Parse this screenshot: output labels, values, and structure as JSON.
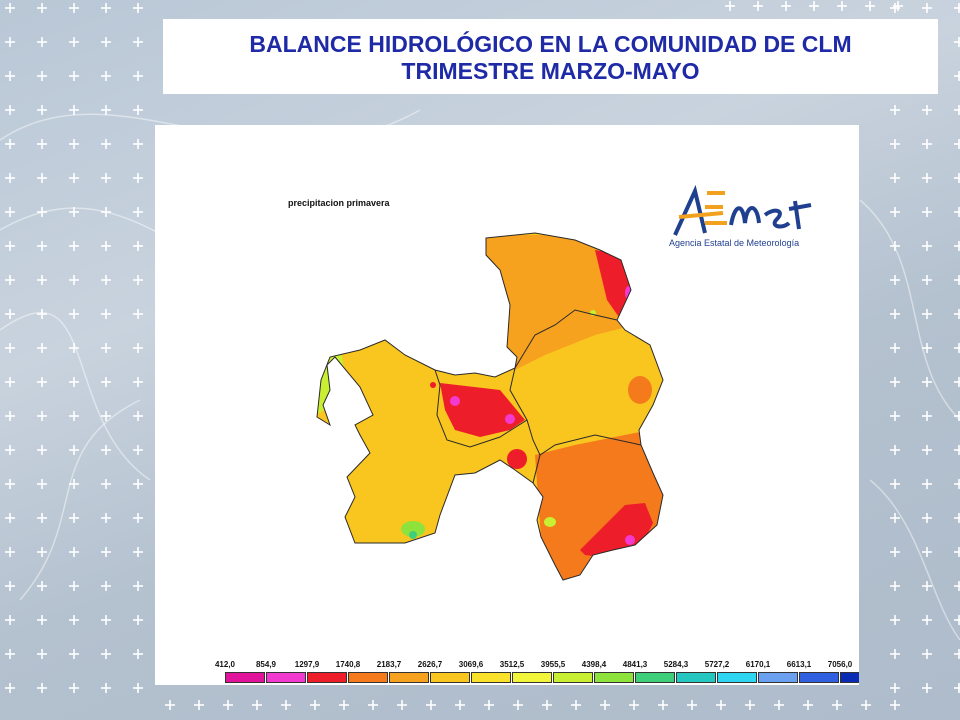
{
  "slide": {
    "title_line1": "BALANCE HIDROLÓGICO EN LA COMUNIDAD DE CLM",
    "title_line2": "TRIMESTRE MARZO-MAYO",
    "title_color": "#1f2aa6"
  },
  "map": {
    "caption": "precipitacion primavera"
  },
  "logo": {
    "wordmark": "AEMet",
    "subtitle": "Agencia Estatal de Meteorología"
  },
  "legend": {
    "labels": [
      "412,0",
      "854,9",
      "1297,9",
      "1740,8",
      "2183,7",
      "2626,7",
      "3069,6",
      "3512,5",
      "3955,5",
      "4398,4",
      "4841,3",
      "5284,3",
      "5727,2",
      "6170,1",
      "6613,1",
      "7056,0"
    ],
    "colors": [
      "#e0139a",
      "#f23ad0",
      "#ee1d2a",
      "#f47a1c",
      "#f7a21e",
      "#f9c51f",
      "#fbe22a",
      "#f2f53a",
      "#c8ef32",
      "#8ee23c",
      "#3fce7a",
      "#25c7c0",
      "#2fd6f2",
      "#6aa0ef",
      "#3060e0",
      "#0a2bb4"
    ]
  }
}
